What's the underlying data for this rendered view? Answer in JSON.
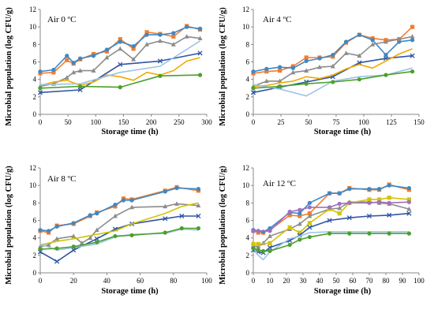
{
  "chart_data": [
    {
      "type": "line",
      "title": "Air 0 ºC",
      "xlabel": "Storage time (h)",
      "ylabel": "Microbial population (log CFU/g)",
      "xlim": [
        0,
        300
      ],
      "ylim": [
        0,
        12
      ],
      "xticks": [
        "0",
        "50",
        "100",
        "150",
        "200",
        "250",
        "300"
      ],
      "yticks": [
        "0",
        "2",
        "4",
        "6",
        "8",
        "10",
        "12"
      ],
      "series": [
        {
          "color": "#f07d32",
          "marker": "square",
          "x": [
            0,
            24,
            48,
            60,
            72,
            96,
            120,
            144,
            168,
            192,
            216,
            240,
            264,
            288
          ],
          "y": [
            4.7,
            4.8,
            6.2,
            5.8,
            6.3,
            6.9,
            7.2,
            8.6,
            7.5,
            9.4,
            9.2,
            8.9,
            10.1,
            9.7
          ]
        },
        {
          "color": "#3f88c5",
          "marker": "circle",
          "x": [
            0,
            24,
            48,
            60,
            72,
            96,
            120,
            144,
            168,
            192,
            216,
            240,
            264,
            288
          ],
          "y": [
            4.9,
            5.1,
            6.7,
            5.9,
            6.4,
            6.7,
            7.4,
            8.3,
            7.8,
            9.1,
            9.1,
            9.3,
            10.0,
            9.8
          ]
        },
        {
          "color": "#8c8c8c",
          "marker": "triangle",
          "x": [
            0,
            24,
            48,
            60,
            72,
            96,
            120,
            144,
            168,
            192,
            216,
            240,
            264,
            288
          ],
          "y": [
            3.2,
            3.5,
            4.2,
            4.8,
            5.0,
            5.0,
            6.5,
            7.5,
            6.3,
            8.0,
            8.4,
            8.0,
            8.9,
            8.7
          ]
        },
        {
          "color": "#2f55a4",
          "marker": "x",
          "x": [
            0,
            72,
            144,
            216,
            288
          ],
          "y": [
            2.5,
            2.8,
            5.7,
            6.1,
            7.0
          ]
        },
        {
          "color": "#f2a900",
          "marker": "none",
          "x": [
            0,
            24,
            48,
            72,
            96,
            120,
            144,
            168,
            192,
            216,
            240,
            264,
            288
          ],
          "y": [
            3.3,
            3.7,
            3.9,
            3.3,
            3.7,
            4.5,
            4.3,
            3.9,
            4.8,
            4.5,
            5.0,
            6.1,
            6.5
          ]
        },
        {
          "color": "#9dc3e6",
          "marker": "none",
          "x": [
            0,
            72,
            144,
            216,
            288
          ],
          "y": [
            3.4,
            3.5,
            4.8,
            5.5,
            8.4
          ]
        },
        {
          "color": "#4aa02c",
          "marker": "circle",
          "x": [
            0,
            72,
            144,
            216,
            288
          ],
          "y": [
            3.0,
            3.2,
            3.1,
            4.4,
            4.5
          ]
        }
      ]
    },
    {
      "type": "line",
      "title": "Air 4 ºC",
      "xlabel": "Storage time (h)",
      "ylabel": "Microbial population (log CFU/g)",
      "xlim": [
        0,
        150
      ],
      "ylim": [
        0,
        12
      ],
      "xticks": [
        "0",
        "25",
        "50",
        "75",
        "100",
        "125",
        "150"
      ],
      "yticks": [
        "0",
        "2",
        "4",
        "6",
        "8",
        "10",
        "12"
      ],
      "series": [
        {
          "color": "#f07d32",
          "marker": "square",
          "x": [
            0,
            12,
            24,
            36,
            48,
            60,
            72,
            84,
            96,
            108,
            120,
            132,
            144
          ],
          "y": [
            4.7,
            4.9,
            5.0,
            5.5,
            6.5,
            6.5,
            6.6,
            8.2,
            9.1,
            8.7,
            8.5,
            8.6,
            10.0
          ]
        },
        {
          "color": "#3f88c5",
          "marker": "circle",
          "x": [
            0,
            12,
            24,
            36,
            48,
            60,
            72,
            84,
            96,
            108,
            120,
            132,
            144
          ],
          "y": [
            4.9,
            5.2,
            5.4,
            5.3,
            6.1,
            6.4,
            6.8,
            8.3,
            9.1,
            8.5,
            6.8,
            8.3,
            8.5
          ]
        },
        {
          "color": "#8c8c8c",
          "marker": "triangle",
          "x": [
            0,
            12,
            24,
            36,
            48,
            60,
            72,
            84,
            96,
            108,
            120,
            132,
            144
          ],
          "y": [
            3.2,
            3.8,
            3.8,
            4.8,
            5.0,
            5.4,
            5.5,
            7.0,
            6.7,
            8.0,
            8.3,
            8.6,
            8.9
          ]
        },
        {
          "color": "#2f55a4",
          "marker": "x",
          "x": [
            0,
            24,
            48,
            72,
            96,
            120,
            144
          ],
          "y": [
            2.5,
            3.1,
            3.7,
            4.3,
            5.9,
            6.4,
            6.7
          ]
        },
        {
          "color": "#f2a900",
          "marker": "none",
          "x": [
            0,
            12,
            24,
            36,
            48,
            60,
            72,
            84,
            96,
            108,
            120,
            132,
            144
          ],
          "y": [
            3.2,
            3.3,
            3.6,
            3.8,
            4.3,
            4.1,
            4.5,
            5.2,
            5.7,
            5.3,
            6.1,
            6.9,
            7.5
          ]
        },
        {
          "color": "#9dc3e6",
          "marker": "none",
          "x": [
            0,
            24,
            48,
            72,
            96,
            120,
            144
          ],
          "y": [
            3.4,
            2.9,
            2.1,
            3.8,
            4.3,
            4.5,
            5.3
          ]
        },
        {
          "color": "#4aa02c",
          "marker": "circle",
          "x": [
            0,
            24,
            48,
            72,
            96,
            120,
            144
          ],
          "y": [
            3.0,
            3.2,
            3.5,
            3.7,
            4.0,
            4.5,
            4.9
          ]
        }
      ]
    },
    {
      "type": "line",
      "title": "Air 8 ºC",
      "xlabel": "Storage time (h)",
      "ylabel": "Microbial population (log CFU/g)",
      "xlim": [
        0,
        100
      ],
      "ylim": [
        0,
        12
      ],
      "xticks": [
        "0",
        "20",
        "40",
        "60",
        "80",
        "100"
      ],
      "yticks": [
        "0",
        "2",
        "4",
        "6",
        "8",
        "10",
        "12"
      ],
      "series": [
        {
          "color": "#f07d32",
          "marker": "square",
          "x": [
            0,
            5,
            10,
            20,
            30,
            34,
            45,
            50,
            55,
            75,
            82,
            95
          ],
          "y": [
            4.8,
            4.6,
            5.4,
            5.6,
            6.5,
            6.9,
            7.6,
            8.5,
            8.4,
            9.4,
            9.8,
            9.4
          ]
        },
        {
          "color": "#3f88c5",
          "marker": "circle",
          "x": [
            0,
            5,
            10,
            20,
            30,
            34,
            45,
            50,
            55,
            75,
            82,
            95
          ],
          "y": [
            4.9,
            4.8,
            5.3,
            5.7,
            6.6,
            6.8,
            7.8,
            8.3,
            8.3,
            9.3,
            9.7,
            9.6
          ]
        },
        {
          "color": "#8c8c8c",
          "marker": "triangle",
          "x": [
            0,
            5,
            10,
            20,
            25,
            30,
            34,
            45,
            55,
            75,
            82,
            95
          ],
          "y": [
            3.0,
            3.2,
            3.9,
            4.2,
            3.4,
            4.0,
            4.9,
            6.5,
            7.5,
            7.6,
            7.9,
            7.7
          ]
        },
        {
          "color": "#2f55a4",
          "marker": "x",
          "x": [
            0,
            10,
            20,
            34,
            45,
            55,
            75,
            85,
            95
          ],
          "y": [
            2.4,
            1.3,
            2.6,
            3.9,
            5.0,
            5.6,
            6.2,
            6.5,
            6.5
          ]
        },
        {
          "color": "#d4c400",
          "marker": "none",
          "x": [
            0,
            10,
            20,
            34,
            45,
            55,
            75,
            85,
            95
          ],
          "y": [
            3.2,
            3.6,
            3.9,
            4.4,
            4.8,
            5.6,
            6.8,
            7.6,
            8.0
          ]
        },
        {
          "color": "#9dc3e6",
          "marker": "none",
          "x": [
            0,
            10,
            20,
            34,
            45,
            55,
            75,
            85,
            95
          ],
          "y": [
            3.3,
            2.6,
            2.9,
            3.3,
            4.1,
            4.4,
            4.5,
            5.0,
            4.9
          ]
        },
        {
          "color": "#4aa02c",
          "marker": "circle",
          "x": [
            0,
            10,
            20,
            34,
            45,
            55,
            75,
            85,
            95
          ],
          "y": [
            2.7,
            2.8,
            3.0,
            3.5,
            4.2,
            4.3,
            4.6,
            5.1,
            5.1
          ]
        }
      ]
    },
    {
      "type": "line",
      "title": "Air 12 ºC",
      "xlabel": "Storage time (h)",
      "ylabel": "Microbial population (log CFU/g)",
      "xlim": [
        0,
        100
      ],
      "ylim": [
        0,
        12
      ],
      "xticks": [
        "0",
        "10",
        "20",
        "30",
        "40",
        "50",
        "60",
        "70",
        "80",
        "90",
        "100"
      ],
      "yticks": [
        "0",
        "2",
        "4",
        "6",
        "8",
        "10",
        "12"
      ],
      "series": [
        {
          "color": "#f07d32",
          "marker": "square",
          "x": [
            0,
            3,
            6,
            10,
            22,
            28,
            34,
            46,
            52,
            58,
            70,
            76,
            82,
            94
          ],
          "y": [
            4.8,
            4.6,
            4.6,
            4.9,
            6.6,
            6.5,
            6.8,
            9.1,
            9.1,
            9.7,
            9.5,
            9.5,
            10.1,
            9.5
          ]
        },
        {
          "color": "#3f88c5",
          "marker": "circle",
          "x": [
            0,
            3,
            6,
            10,
            22,
            28,
            34,
            46,
            52,
            58,
            70,
            76,
            82,
            94
          ],
          "y": [
            4.9,
            4.8,
            4.7,
            5.1,
            6.9,
            6.8,
            8.0,
            9.1,
            9.1,
            9.6,
            9.6,
            9.6,
            10.0,
            9.7
          ]
        },
        {
          "color": "#8c8c8c",
          "marker": "triangle",
          "x": [
            0,
            3,
            6,
            10,
            22,
            28,
            34,
            46,
            52,
            58,
            70,
            76,
            82,
            94
          ],
          "y": [
            3.1,
            3.0,
            3.4,
            4.2,
            5.0,
            5.6,
            6.5,
            7.3,
            7.4,
            8.1,
            8.1,
            8.0,
            7.9,
            7.3
          ]
        },
        {
          "color": "#d4c400",
          "marker": "square",
          "x": [
            0,
            3,
            10,
            22,
            28,
            34,
            46,
            52,
            58,
            70,
            76,
            82,
            94
          ],
          "y": [
            3.3,
            3.3,
            3.4,
            5.2,
            4.6,
            5.7,
            7.3,
            6.8,
            8.0,
            8.4,
            8.4,
            8.6,
            8.4
          ]
        },
        {
          "color": "#9f6fbf",
          "marker": "circle",
          "x": [
            0,
            3,
            10,
            22,
            28,
            34,
            46,
            52,
            58,
            70,
            76,
            82,
            94
          ],
          "y": [
            4.8,
            4.8,
            4.8,
            7.0,
            7.2,
            7.5,
            7.5,
            7.9,
            8.0,
            8.0,
            8.1,
            8.0,
            8.1
          ]
        },
        {
          "color": "#2f55a4",
          "marker": "x",
          "x": [
            0,
            3,
            6,
            10,
            22,
            28,
            34,
            46,
            58,
            70,
            82,
            94
          ],
          "y": [
            2.6,
            2.4,
            2.3,
            2.9,
            3.7,
            4.3,
            5.2,
            6.0,
            6.3,
            6.5,
            6.6,
            6.8
          ]
        },
        {
          "color": "#9dc3e6",
          "marker": "none",
          "x": [
            0,
            3,
            6,
            10,
            22,
            28,
            34,
            46,
            58,
            70,
            82,
            94
          ],
          "y": [
            2.9,
            2.0,
            1.5,
            2.4,
            3.9,
            4.2,
            4.6,
            4.7,
            4.7,
            4.7,
            4.7,
            4.7
          ]
        },
        {
          "color": "#4aa02c",
          "marker": "circle",
          "x": [
            0,
            3,
            6,
            10,
            22,
            28,
            34,
            46,
            58,
            70,
            82,
            94
          ],
          "y": [
            2.8,
            2.6,
            2.5,
            2.5,
            3.2,
            3.8,
            4.1,
            4.5,
            4.5,
            4.5,
            4.5,
            4.5
          ]
        }
      ]
    }
  ]
}
